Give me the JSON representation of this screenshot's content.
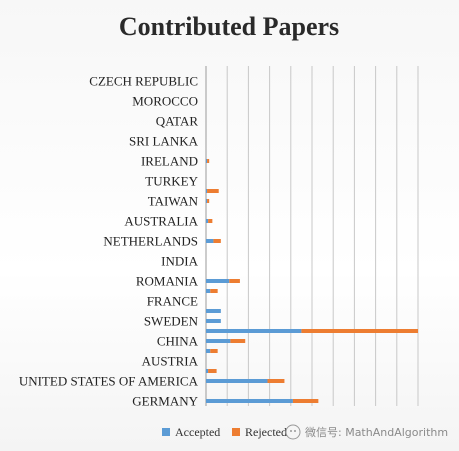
{
  "chart_data": {
    "type": "bar",
    "orientation": "horizontal",
    "stacked": true,
    "title": "Contributed Papers",
    "xlabel": "",
    "ylabel": "",
    "grid": true,
    "legend_position": "bottom",
    "xlim": [
      0,
      200
    ],
    "categories": [
      "GERMANY",
      "",
      "UNITED STATES OF AMERICA",
      "",
      "AUSTRIA",
      "",
      "CHINA",
      "",
      "SWEDEN",
      "",
      "FRANCE",
      "",
      "ROMANIA",
      "",
      "INDIA",
      "",
      "NETHERLANDS",
      "",
      "AUSTRALIA",
      "",
      "TAIWAN",
      "",
      "TURKEY",
      "",
      "IRELAND",
      "",
      "SRI LANKA",
      "",
      "QATAR",
      "",
      "MOROCCO",
      "",
      "CZECH REPUBLIC",
      ""
    ],
    "series": [
      {
        "name": "Accepted",
        "color": "#5b9bd5",
        "values": [
          82,
          0,
          58,
          2,
          0,
          4,
          23,
          90,
          14,
          14,
          0,
          4,
          22,
          0,
          0,
          0,
          7,
          0,
          2,
          0,
          1,
          1,
          0,
          0,
          1,
          0,
          0,
          0,
          0,
          0,
          0,
          0,
          0,
          0
        ]
      },
      {
        "name": "Rejected",
        "color": "#ed7d31",
        "values": [
          24,
          0,
          16,
          8,
          0,
          7,
          14,
          110,
          0,
          0,
          0,
          7,
          10,
          0,
          0,
          0,
          7,
          0,
          4,
          0,
          2,
          11,
          0,
          0,
          2,
          0,
          0,
          0,
          0,
          0,
          0,
          0,
          0,
          0
        ]
      }
    ]
  },
  "watermark": "微信号: MathAndAlgorithm"
}
